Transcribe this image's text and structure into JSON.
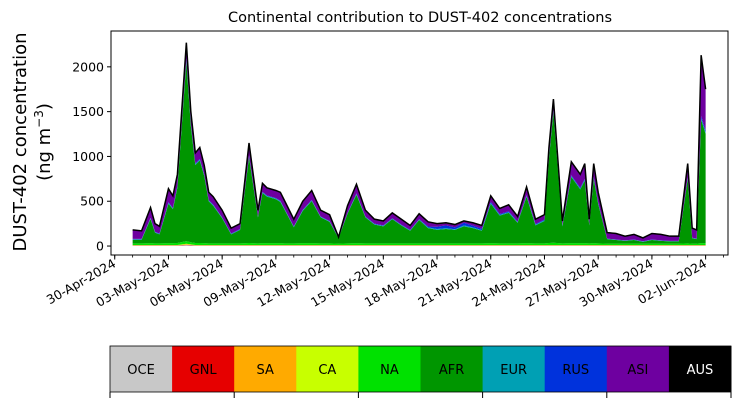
{
  "chart_data": {
    "type": "area",
    "title": "Continental contribution to DUST-402 concentrations",
    "ylabel_line1": "DUST-402 concentration",
    "ylabel_line2": "(ng m",
    "ylabel_unit_exp": "−3",
    "ylabel_close": ")",
    "xlabel": "",
    "stacked": true,
    "ylim": [
      -100,
      2400
    ],
    "yticks": [
      0,
      500,
      1000,
      1500,
      2000
    ],
    "x_tick_dates": [
      "2024-04-30",
      "2024-05-03",
      "2024-05-06",
      "2024-05-09",
      "2024-05-12",
      "2024-05-15",
      "2024-05-18",
      "2024-05-21",
      "2024-05-24",
      "2024-05-27",
      "2024-05-30",
      "2024-06-02"
    ],
    "x_tick_labels": [
      "30-Apr-2024",
      "03-May-2024",
      "06-May-2024",
      "09-May-2024",
      "12-May-2024",
      "15-May-2024",
      "18-May-2024",
      "21-May-2024",
      "24-May-2024",
      "27-May-2024",
      "30-May-2024",
      "02-Jun-2024"
    ],
    "xlim": [
      "2024-04-29T19:00",
      "2024-06-03T06:00"
    ],
    "x": [
      "2024-05-01T00:00",
      "2024-05-01T12:00",
      "2024-05-02T00:00",
      "2024-05-02T06:00",
      "2024-05-02T12:00",
      "2024-05-03T00:00",
      "2024-05-03T06:00",
      "2024-05-03T12:00",
      "2024-05-04T00:00",
      "2024-05-04T06:00",
      "2024-05-04T12:00",
      "2024-05-04T18:00",
      "2024-05-05T00:00",
      "2024-05-05T06:00",
      "2024-05-05T12:00",
      "2024-05-06T00:00",
      "2024-05-06T12:00",
      "2024-05-07T00:00",
      "2024-05-07T12:00",
      "2024-05-08T00:00",
      "2024-05-08T06:00",
      "2024-05-08T12:00",
      "2024-05-09T00:00",
      "2024-05-09T06:00",
      "2024-05-09T12:00",
      "2024-05-10T00:00",
      "2024-05-10T12:00",
      "2024-05-11T00:00",
      "2024-05-11T12:00",
      "2024-05-12T00:00",
      "2024-05-12T12:00",
      "2024-05-13T00:00",
      "2024-05-13T12:00",
      "2024-05-14T00:00",
      "2024-05-14T12:00",
      "2024-05-15T00:00",
      "2024-05-15T12:00",
      "2024-05-16T00:00",
      "2024-05-16T12:00",
      "2024-05-17T00:00",
      "2024-05-17T12:00",
      "2024-05-18T00:00",
      "2024-05-18T12:00",
      "2024-05-19T00:00",
      "2024-05-19T12:00",
      "2024-05-20T00:00",
      "2024-05-20T12:00",
      "2024-05-21T00:00",
      "2024-05-21T12:00",
      "2024-05-22T00:00",
      "2024-05-22T12:00",
      "2024-05-23T00:00",
      "2024-05-23T12:00",
      "2024-05-24T00:00",
      "2024-05-24T06:00",
      "2024-05-24T12:00",
      "2024-05-25T00:00",
      "2024-05-25T12:00",
      "2024-05-26T00:00",
      "2024-05-26T06:00",
      "2024-05-26T12:00",
      "2024-05-26T18:00",
      "2024-05-27T00:00",
      "2024-05-27T12:00",
      "2024-05-28T00:00",
      "2024-05-28T12:00",
      "2024-05-29T00:00",
      "2024-05-29T12:00",
      "2024-05-30T00:00",
      "2024-05-30T12:00",
      "2024-05-31T00:00",
      "2024-05-31T12:00",
      "2024-06-01T00:00",
      "2024-06-01T06:00",
      "2024-06-01T12:00",
      "2024-06-01T18:00",
      "2024-06-02T00:00"
    ],
    "total": [
      180,
      170,
      430,
      250,
      220,
      640,
      560,
      800,
      2270,
      1500,
      1040,
      1100,
      900,
      600,
      550,
      400,
      200,
      250,
      1150,
      400,
      700,
      650,
      620,
      600,
      500,
      300,
      500,
      620,
      400,
      350,
      100,
      450,
      690,
      400,
      300,
      280,
      370,
      300,
      230,
      360,
      270,
      250,
      260,
      240,
      280,
      260,
      230,
      560,
      420,
      460,
      330,
      660,
      300,
      350,
      1100,
      1640,
      280,
      940,
      800,
      920,
      300,
      920,
      600,
      150,
      140,
      110,
      130,
      90,
      140,
      130,
      110,
      110,
      920,
      200,
      180,
      2130,
      1750
    ],
    "series": [
      {
        "name": "OCE",
        "values": [
          5,
          5,
          5,
          5,
          5,
          5,
          5,
          5,
          10,
          8,
          5,
          5,
          5,
          5,
          5,
          5,
          5,
          5,
          5,
          5,
          5,
          5,
          5,
          5,
          5,
          5,
          5,
          5,
          5,
          5,
          5,
          5,
          5,
          5,
          5,
          5,
          5,
          5,
          5,
          5,
          5,
          5,
          5,
          5,
          5,
          5,
          5,
          5,
          5,
          5,
          5,
          5,
          5,
          5,
          5,
          5,
          5,
          5,
          5,
          5,
          5,
          5,
          5,
          5,
          5,
          5,
          5,
          5,
          5,
          5,
          5,
          5,
          5,
          5,
          5,
          5,
          5
        ]
      },
      {
        "name": "GNL",
        "values": [
          2,
          2,
          2,
          2,
          2,
          2,
          2,
          2,
          5,
          3,
          2,
          2,
          2,
          2,
          2,
          2,
          2,
          2,
          2,
          2,
          2,
          2,
          2,
          2,
          2,
          2,
          2,
          2,
          2,
          2,
          2,
          2,
          2,
          2,
          2,
          2,
          2,
          2,
          2,
          2,
          2,
          2,
          2,
          2,
          2,
          2,
          2,
          2,
          2,
          2,
          2,
          2,
          2,
          2,
          2,
          2,
          2,
          2,
          2,
          2,
          2,
          2,
          2,
          2,
          2,
          2,
          2,
          2,
          2,
          2,
          2,
          2,
          2,
          2,
          2,
          2,
          2
        ]
      },
      {
        "name": "SA",
        "values": [
          2,
          2,
          2,
          2,
          2,
          2,
          2,
          2,
          5,
          3,
          2,
          2,
          2,
          2,
          2,
          2,
          2,
          2,
          2,
          2,
          2,
          2,
          2,
          2,
          2,
          2,
          2,
          2,
          2,
          2,
          2,
          2,
          2,
          2,
          2,
          2,
          2,
          2,
          2,
          2,
          2,
          2,
          2,
          2,
          2,
          2,
          2,
          2,
          2,
          2,
          2,
          2,
          2,
          2,
          2,
          2,
          2,
          2,
          2,
          2,
          2,
          2,
          2,
          2,
          2,
          2,
          2,
          2,
          2,
          2,
          2,
          2,
          2,
          2,
          2,
          2,
          2
        ]
      },
      {
        "name": "CA",
        "values": [
          3,
          3,
          3,
          3,
          3,
          3,
          3,
          3,
          5,
          4,
          3,
          3,
          3,
          3,
          3,
          3,
          3,
          3,
          3,
          3,
          3,
          3,
          3,
          3,
          3,
          3,
          3,
          3,
          3,
          3,
          3,
          3,
          3,
          3,
          3,
          3,
          3,
          3,
          3,
          3,
          3,
          3,
          3,
          3,
          3,
          3,
          3,
          3,
          3,
          3,
          3,
          3,
          3,
          3,
          3,
          3,
          3,
          3,
          3,
          3,
          3,
          3,
          3,
          3,
          3,
          3,
          3,
          3,
          3,
          3,
          3,
          3,
          3,
          3,
          3,
          3,
          3
        ]
      },
      {
        "name": "NA",
        "values": [
          18,
          18,
          20,
          18,
          18,
          20,
          20,
          22,
          30,
          25,
          22,
          22,
          20,
          18,
          18,
          18,
          18,
          18,
          22,
          18,
          20,
          20,
          20,
          20,
          18,
          18,
          20,
          20,
          18,
          18,
          15,
          18,
          20,
          18,
          18,
          18,
          18,
          18,
          18,
          18,
          18,
          18,
          18,
          18,
          18,
          18,
          18,
          20,
          18,
          18,
          18,
          20,
          18,
          18,
          22,
          25,
          18,
          20,
          20,
          20,
          18,
          20,
          18,
          15,
          15,
          15,
          15,
          15,
          15,
          15,
          15,
          15,
          18,
          15,
          15,
          20,
          20
        ]
      },
      {
        "name": "AFR",
        "values": [
          40,
          40,
          270,
          120,
          100,
          440,
          380,
          620,
          2000,
          1300,
          870,
          920,
          750,
          470,
          420,
          280,
          100,
          150,
          960,
          290,
          560,
          520,
          490,
          460,
          370,
          180,
          360,
          470,
          290,
          240,
          60,
          330,
          540,
          290,
          210,
          190,
          270,
          200,
          140,
          260,
          170,
          150,
          160,
          150,
          190,
          170,
          140,
          440,
          310,
          340,
          230,
          520,
          200,
          250,
          940,
          1460,
          190,
          740,
          600,
          700,
          200,
          720,
          440,
          50,
          40,
          30,
          40,
          20,
          40,
          30,
          25,
          25,
          720,
          60,
          50,
          1380,
          1220
        ]
      },
      {
        "name": "EUR",
        "values": [
          5,
          5,
          8,
          5,
          5,
          10,
          8,
          10,
          20,
          15,
          10,
          10,
          8,
          8,
          8,
          5,
          5,
          5,
          10,
          5,
          8,
          8,
          8,
          8,
          5,
          5,
          8,
          8,
          5,
          5,
          3,
          5,
          8,
          5,
          5,
          5,
          5,
          5,
          5,
          5,
          8,
          10,
          10,
          8,
          10,
          8,
          8,
          8,
          8,
          8,
          5,
          8,
          8,
          8,
          10,
          10,
          5,
          8,
          8,
          8,
          5,
          8,
          8,
          3,
          3,
          3,
          3,
          3,
          3,
          3,
          3,
          3,
          8,
          3,
          3,
          15,
          15
        ]
      },
      {
        "name": "RUS",
        "values": [
          5,
          5,
          5,
          5,
          5,
          8,
          5,
          8,
          15,
          10,
          8,
          8,
          8,
          5,
          5,
          5,
          5,
          5,
          8,
          5,
          5,
          5,
          5,
          5,
          5,
          5,
          5,
          5,
          5,
          5,
          3,
          5,
          8,
          5,
          5,
          5,
          5,
          5,
          5,
          5,
          10,
          25,
          30,
          20,
          30,
          20,
          15,
          15,
          10,
          10,
          8,
          8,
          8,
          8,
          10,
          10,
          8,
          10,
          10,
          10,
          5,
          10,
          8,
          3,
          3,
          3,
          3,
          3,
          3,
          3,
          3,
          3,
          10,
          3,
          3,
          25,
          25
        ]
      },
      {
        "name": "ASI",
        "values": [
          95,
          85,
          110,
          85,
          75,
          145,
          130,
          123,
          170,
          125,
          113,
          123,
          97,
          82,
          82,
          75,
          55,
          55,
          133,
          65,
          90,
          80,
          80,
          90,
          80,
          75,
          90,
          100,
          65,
          65,
          12,
          75,
          100,
          65,
          45,
          45,
          57,
          55,
          45,
          55,
          47,
          30,
          22,
          26,
          13,
          27,
          30,
          60,
          55,
          65,
          50,
          85,
          50,
          50,
          95,
          115,
          45,
          140,
          135,
          155,
          55,
          140,
          105,
          69,
          67,
          47,
          57,
          42,
          67,
          67,
          52,
          52,
          152,
          107,
          97,
          660,
          438
        ]
      },
      {
        "name": "AUS",
        "values": [
          5,
          5,
          5,
          5,
          5,
          5,
          5,
          5,
          10,
          7,
          5,
          5,
          5,
          5,
          5,
          5,
          5,
          5,
          5,
          5,
          5,
          5,
          5,
          5,
          5,
          5,
          5,
          5,
          5,
          5,
          3,
          5,
          5,
          5,
          5,
          5,
          5,
          5,
          5,
          5,
          5,
          5,
          5,
          5,
          5,
          5,
          5,
          5,
          5,
          5,
          5,
          5,
          5,
          5,
          5,
          5,
          5,
          5,
          5,
          5,
          5,
          5,
          5,
          5,
          5,
          5,
          5,
          5,
          5,
          5,
          5,
          5,
          5,
          5,
          5,
          5,
          5
        ]
      }
    ],
    "colors": {
      "OCE": "#c8c8c8",
      "GNL": "#e60000",
      "SA": "#ffaa00",
      "CA": "#c8ff00",
      "NA": "#00e100",
      "AFR": "#009600",
      "EUR": "#00a0b4",
      "RUS": "#0032dc",
      "ASI": "#6e00a0",
      "AUS": "#000000"
    },
    "total_line_color": "#000000",
    "legend": {
      "placement": "bottom",
      "items": [
        {
          "label": "OCE",
          "bg": "#c8c8c8",
          "fg": "#000000"
        },
        {
          "label": "GNL",
          "bg": "#e60000",
          "fg": "#000000"
        },
        {
          "label": "SA",
          "bg": "#ffaa00",
          "fg": "#000000"
        },
        {
          "label": "CA",
          "bg": "#c8ff00",
          "fg": "#000000"
        },
        {
          "label": "NA",
          "bg": "#00e100",
          "fg": "#000000"
        },
        {
          "label": "AFR",
          "bg": "#009600",
          "fg": "#000000"
        },
        {
          "label": "EUR",
          "bg": "#00a0b4",
          "fg": "#000000"
        },
        {
          "label": "RUS",
          "bg": "#0032dc",
          "fg": "#000000"
        },
        {
          "label": "ASI",
          "bg": "#6e00a0",
          "fg": "#000000"
        },
        {
          "label": "AUS",
          "bg": "#000000",
          "fg": "#ffffff"
        }
      ]
    },
    "grid": false
  }
}
